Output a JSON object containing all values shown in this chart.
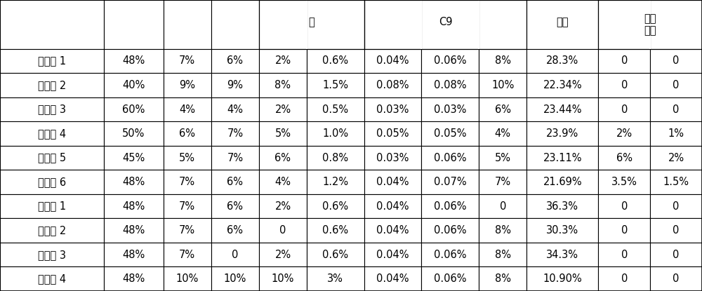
{
  "rows": [
    [
      "实施例 1",
      "48%",
      "7%",
      "6%",
      "2%",
      "0.6%",
      "0.04%",
      "0.06%",
      "8%",
      "28.3%",
      "0",
      "0"
    ],
    [
      "实施例 2",
      "40%",
      "9%",
      "9%",
      "8%",
      "1.5%",
      "0.08%",
      "0.08%",
      "10%",
      "22.34%",
      "0",
      "0"
    ],
    [
      "实施例 3",
      "60%",
      "4%",
      "4%",
      "2%",
      "0.5%",
      "0.03%",
      "0.03%",
      "6%",
      "23.44%",
      "0",
      "0"
    ],
    [
      "实施例 4",
      "50%",
      "6%",
      "7%",
      "5%",
      "1.0%",
      "0.05%",
      "0.05%",
      "4%",
      "23.9%",
      "2%",
      "1%"
    ],
    [
      "实施例 5",
      "45%",
      "5%",
      "7%",
      "6%",
      "0.8%",
      "0.03%",
      "0.06%",
      "5%",
      "23.11%",
      "6%",
      "2%"
    ],
    [
      "实施例 6",
      "48%",
      "7%",
      "6%",
      "4%",
      "1.2%",
      "0.04%",
      "0.07%",
      "7%",
      "21.69%",
      "3.5%",
      "1.5%"
    ],
    [
      "对比例 1",
      "48%",
      "7%",
      "6%",
      "2%",
      "0.6%",
      "0.04%",
      "0.06%",
      "0",
      "36.3%",
      "0",
      "0"
    ],
    [
      "对比例 2",
      "48%",
      "7%",
      "6%",
      "0",
      "0.6%",
      "0.04%",
      "0.06%",
      "8%",
      "30.3%",
      "0",
      "0"
    ],
    [
      "对比例 3",
      "48%",
      "7%",
      "0",
      "2%",
      "0.6%",
      "0.04%",
      "0.06%",
      "8%",
      "34.3%",
      "0",
      "0"
    ],
    [
      "对比例 4",
      "48%",
      "10%",
      "10%",
      "10%",
      "3%",
      "0.04%",
      "0.06%",
      "8%",
      "10.90%",
      "0",
      "0"
    ]
  ],
  "col_widths_ratio": [
    1.3,
    0.75,
    0.6,
    0.6,
    0.6,
    0.72,
    0.72,
    0.72,
    0.6,
    0.9,
    0.65,
    0.65
  ],
  "header_jiao": "胶",
  "header_c9": "C9",
  "header_shuzhi": "树脂",
  "header_oxy": "氧乙\n烯醚",
  "jiao_span": [
    4,
    5
  ],
  "c9_span": [
    6,
    7,
    8
  ],
  "shuzhi_col": 9,
  "oxy_col": 10,
  "bg_color": "#ffffff",
  "line_color": "#000000",
  "text_color": "#000000",
  "font_size": 10.5,
  "header_font_size": 10.5
}
